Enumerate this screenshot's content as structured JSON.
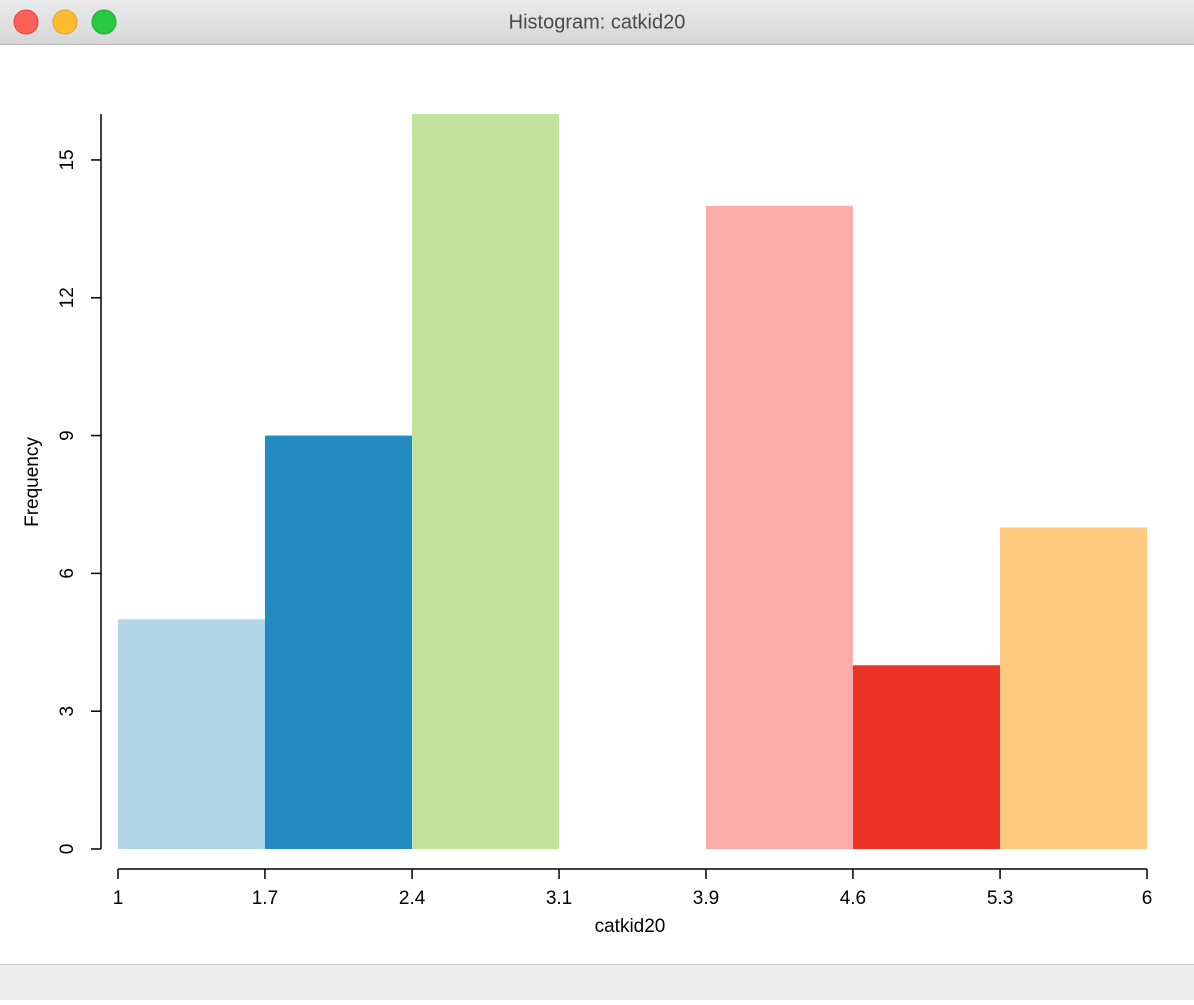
{
  "chart_data": {
    "type": "histogram",
    "title": "Histogram: catkid20",
    "xlabel": "catkid20",
    "ylabel": "Frequency",
    "bins": [
      1,
      1.714,
      2.429,
      3.143,
      3.857,
      4.571,
      5.286,
      6
    ],
    "values": [
      5,
      9,
      16,
      0,
      14,
      4,
      7
    ],
    "colors": [
      "#b3d5e8",
      "#238bc2",
      "#c1e49c",
      null,
      "#fdacaa",
      "#ec3426",
      "#fdca80"
    ],
    "xlim": [
      1,
      6
    ],
    "xticks": [
      1,
      {
        "value": 1.714,
        "label": "1.7"
      },
      {
        "value": 2.429,
        "label": "2.4"
      },
      {
        "value": 3.143,
        "label": "3.1"
      },
      {
        "value": 3.857,
        "label": "3.9"
      },
      {
        "value": 4.571,
        "label": "4.6"
      },
      {
        "value": 5.286,
        "label": "5.3"
      },
      6
    ],
    "ylim": [
      0,
      16
    ],
    "yticks": [
      0,
      3,
      6,
      9,
      12,
      15
    ]
  }
}
